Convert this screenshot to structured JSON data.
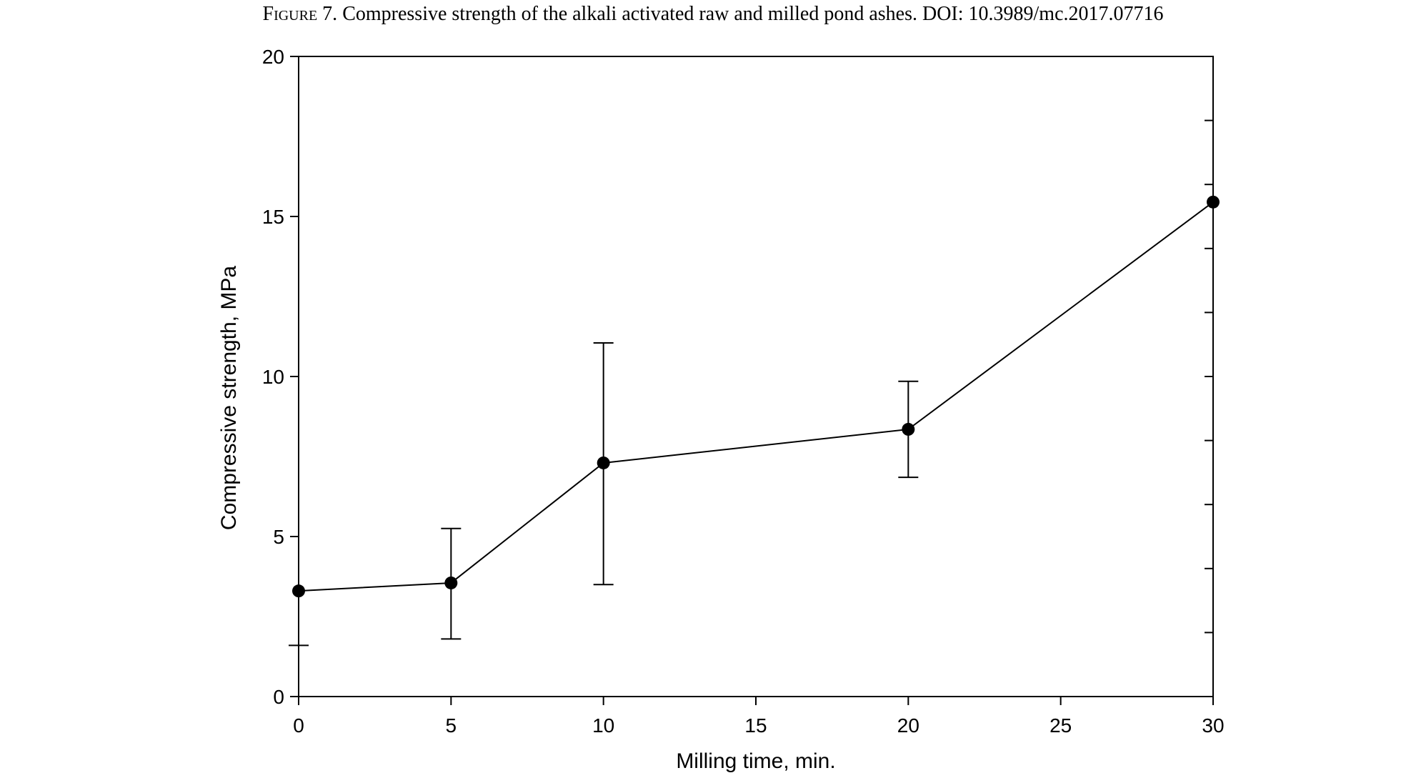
{
  "caption": {
    "figure_label": "Figure 7.",
    "text": "Compressive strength of the alkali activated raw and milled pond ashes.",
    "doi": "DOI: 10.3989/mc.2017.07716"
  },
  "chart_data": {
    "type": "line",
    "title": "",
    "xlabel": "Milling time, min.",
    "ylabel": "Compressive strength, MPa",
    "xlim": [
      0,
      30
    ],
    "ylim": [
      0,
      20
    ],
    "x_ticks": [
      0,
      5,
      10,
      15,
      20,
      25,
      30
    ],
    "y_ticks": [
      0,
      5,
      10,
      15,
      20
    ],
    "grid": false,
    "legend": "none",
    "series": [
      {
        "x": [
          0,
          5,
          10,
          20,
          30
        ],
        "y": [
          3.3,
          3.55,
          7.3,
          8.35,
          15.45
        ],
        "err_low": [
          1.6,
          1.8,
          3.5,
          6.85,
          null
        ],
        "err_high": [
          null,
          5.25,
          11.05,
          9.85,
          null
        ],
        "color": "#000000",
        "marker": "circle"
      }
    ]
  }
}
